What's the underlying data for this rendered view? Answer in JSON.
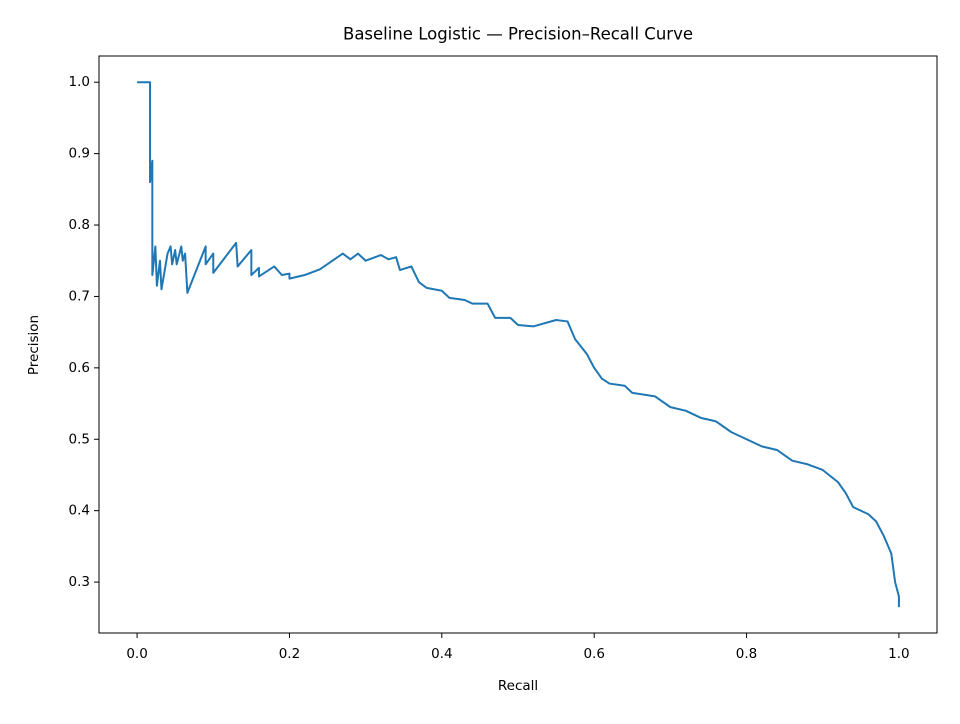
{
  "chart_data": {
    "type": "line",
    "title": "Baseline Logistic — Precision–Recall Curve",
    "x_label": "Recall",
    "y_label": "Precision",
    "x": [
      0,
      0.017,
      0.017,
      0.02,
      0.02,
      0.024,
      0.026,
      0.03,
      0.032,
      0.04,
      0.044,
      0.046,
      0.05,
      0.052,
      0.058,
      0.06,
      0.063,
      0.066,
      0.09,
      0.09,
      0.1,
      0.1,
      0.13,
      0.132,
      0.15,
      0.15,
      0.16,
      0.16,
      0.18,
      0.19,
      0.2,
      0.2,
      0.22,
      0.24,
      0.27,
      0.28,
      0.29,
      0.3,
      0.32,
      0.33,
      0.34,
      0.345,
      0.36,
      0.37,
      0.38,
      0.4,
      0.41,
      0.43,
      0.44,
      0.46,
      0.47,
      0.49,
      0.5,
      0.52,
      0.55,
      0.565,
      0.575,
      0.59,
      0.6,
      0.61,
      0.62,
      0.64,
      0.65,
      0.68,
      0.7,
      0.72,
      0.74,
      0.76,
      0.78,
      0.8,
      0.82,
      0.84,
      0.86,
      0.88,
      0.9,
      0.92,
      0.93,
      0.94,
      0.96,
      0.97,
      0.98,
      0.99,
      0.995,
      1.0,
      1.0
    ],
    "series": [
      {
        "name": "Baseline Logistic",
        "color": "#1f77b4",
        "values": [
          1.0,
          1.0,
          0.86,
          0.89,
          0.73,
          0.77,
          0.715,
          0.75,
          0.71,
          0.76,
          0.77,
          0.745,
          0.765,
          0.745,
          0.77,
          0.75,
          0.76,
          0.705,
          0.77,
          0.745,
          0.76,
          0.733,
          0.775,
          0.742,
          0.765,
          0.73,
          0.74,
          0.728,
          0.742,
          0.73,
          0.732,
          0.725,
          0.73,
          0.738,
          0.76,
          0.752,
          0.76,
          0.75,
          0.758,
          0.752,
          0.755,
          0.737,
          0.742,
          0.72,
          0.712,
          0.708,
          0.698,
          0.695,
          0.69,
          0.69,
          0.67,
          0.67,
          0.66,
          0.658,
          0.667,
          0.665,
          0.64,
          0.62,
          0.6,
          0.585,
          0.578,
          0.575,
          0.565,
          0.56,
          0.545,
          0.54,
          0.53,
          0.525,
          0.51,
          0.5,
          0.49,
          0.485,
          0.47,
          0.465,
          0.457,
          0.44,
          0.425,
          0.405,
          0.395,
          0.385,
          0.365,
          0.34,
          0.3,
          0.28,
          0.265
        ]
      }
    ],
    "xlim": [
      -0.05,
      1.05
    ],
    "xticks": [
      {
        "value": 0,
        "label": "0.0"
      },
      0.2,
      0.4,
      0.6,
      0.8,
      {
        "value": 1,
        "label": "1.0"
      }
    ],
    "ylim": [
      0.2287,
      1.0367
    ],
    "yticks": [
      0.3,
      0.4,
      0.5,
      0.6,
      0.7,
      0.8,
      0.9,
      {
        "value": 1,
        "label": "1.0"
      }
    ],
    "grid": false
  }
}
